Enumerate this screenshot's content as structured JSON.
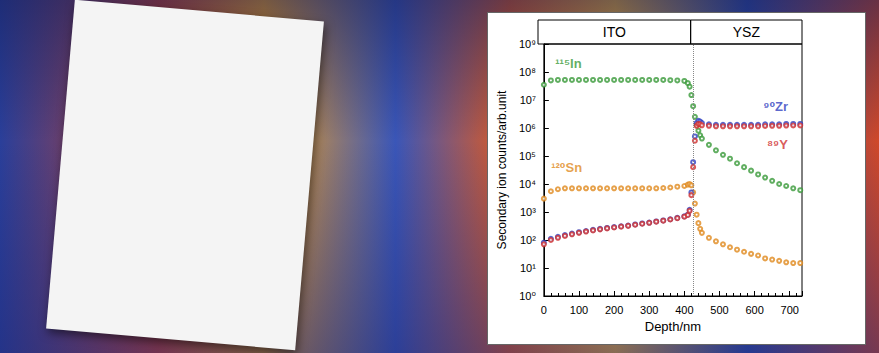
{
  "chart_data": {
    "type": "scatter",
    "x_label": "Depth/nm",
    "y_label": "Secondary ion counts/arb.unit",
    "log": "y",
    "grid": false,
    "marker": "circle_open",
    "xlim": [
      0,
      735
    ],
    "xticks": [
      0,
      100,
      200,
      300,
      400,
      500,
      600,
      700
    ],
    "ylim": [
      1,
      1000000000
    ],
    "yticks": [
      {
        "value": 1,
        "label": "10⁰"
      },
      {
        "value": 10,
        "label": "10¹"
      },
      {
        "value": 100,
        "label": "10²"
      },
      {
        "value": 1000,
        "label": "10³"
      },
      {
        "value": 10000,
        "label": "10⁴"
      },
      {
        "value": 100000,
        "label": "10⁵"
      },
      {
        "value": 1000000,
        "label": "10⁶"
      },
      {
        "value": 10000000,
        "label": "10⁷"
      },
      {
        "value": 100000000,
        "label": "10⁸"
      },
      {
        "value": 1000000000,
        "label": "10⁹"
      }
    ],
    "regions": [
      {
        "label": "ITO",
        "start": 0,
        "end": 425
      },
      {
        "label": "YSZ",
        "start": 425,
        "end": 735
      }
    ],
    "x": [
      0,
      20,
      40,
      60,
      80,
      100,
      120,
      140,
      160,
      180,
      200,
      220,
      240,
      260,
      280,
      300,
      320,
      340,
      360,
      380,
      400,
      410,
      415,
      420,
      425,
      430,
      435,
      440,
      445,
      450,
      470,
      490,
      510,
      530,
      550,
      570,
      590,
      610,
      630,
      650,
      670,
      690,
      710,
      730
    ],
    "series": [
      {
        "name": "¹¹⁵In",
        "color": "#3a9a3a",
        "values": [
          35000000,
          50000000,
          52000000,
          52000000,
          52000000,
          52000000,
          52000000,
          52000000,
          52000000,
          52000000,
          52000000,
          52000000,
          52000000,
          52000000,
          52000000,
          52000000,
          52000000,
          52000000,
          51000000,
          50000000,
          48000000,
          40000000,
          30000000,
          15000000,
          6000000,
          2500000,
          1300000,
          800000,
          550000,
          420000,
          250000,
          160000,
          110000,
          80000,
          55000,
          40000,
          30000,
          22000,
          17000,
          13000,
          10000,
          8500,
          7000,
          6000
        ]
      },
      {
        "name": "¹²⁰Sn",
        "color": "#e08a1e",
        "values": [
          3000,
          5500,
          6500,
          7000,
          7000,
          7000,
          7000,
          7000,
          7000,
          7000,
          7000,
          7000,
          7000,
          7000,
          7000,
          7000,
          7000,
          7200,
          7500,
          8000,
          8500,
          9500,
          10000,
          9000,
          5000,
          2000,
          800,
          400,
          250,
          180,
          120,
          90,
          70,
          55,
          45,
          38,
          32,
          28,
          22,
          20,
          18,
          16,
          15,
          15
        ]
      },
      {
        "name": "⁹⁰Zr",
        "color": "#3040c0",
        "values": [
          80,
          110,
          130,
          150,
          170,
          190,
          210,
          230,
          250,
          270,
          290,
          310,
          330,
          360,
          390,
          420,
          460,
          500,
          550,
          620,
          700,
          800,
          1200,
          5000,
          60000,
          500000,
          1500000,
          1800000,
          1700000,
          1500000,
          1350000,
          1300000,
          1300000,
          1300000,
          1300000,
          1300000,
          1300000,
          1300000,
          1350000,
          1350000,
          1350000,
          1400000,
          1400000,
          1400000
        ]
      },
      {
        "name": "⁸⁹Y",
        "color": "#d03030",
        "values": [
          70,
          100,
          120,
          140,
          160,
          180,
          200,
          220,
          240,
          260,
          280,
          300,
          320,
          350,
          380,
          410,
          450,
          490,
          540,
          600,
          680,
          780,
          1100,
          4000,
          40000,
          350000,
          1200000,
          1400000,
          1350000,
          1250000,
          1200000,
          1150000,
          1150000,
          1150000,
          1150000,
          1150000,
          1150000,
          1150000,
          1180000,
          1200000,
          1200000,
          1220000,
          1230000,
          1230000
        ]
      }
    ],
    "annotations": [
      {
        "text": "¹¹⁵In",
        "x": 70,
        "y": 200000000,
        "color": "#3a9a3a"
      },
      {
        "text": "¹²⁰Sn",
        "x": 65,
        "y": 40000,
        "color": "#e08a1e"
      },
      {
        "text": "⁹⁰Zr",
        "x": 660,
        "y": 6000000,
        "color": "#3040c0"
      },
      {
        "text": "⁸⁹Y",
        "x": 665,
        "y": 250000,
        "color": "#d03030"
      }
    ]
  }
}
